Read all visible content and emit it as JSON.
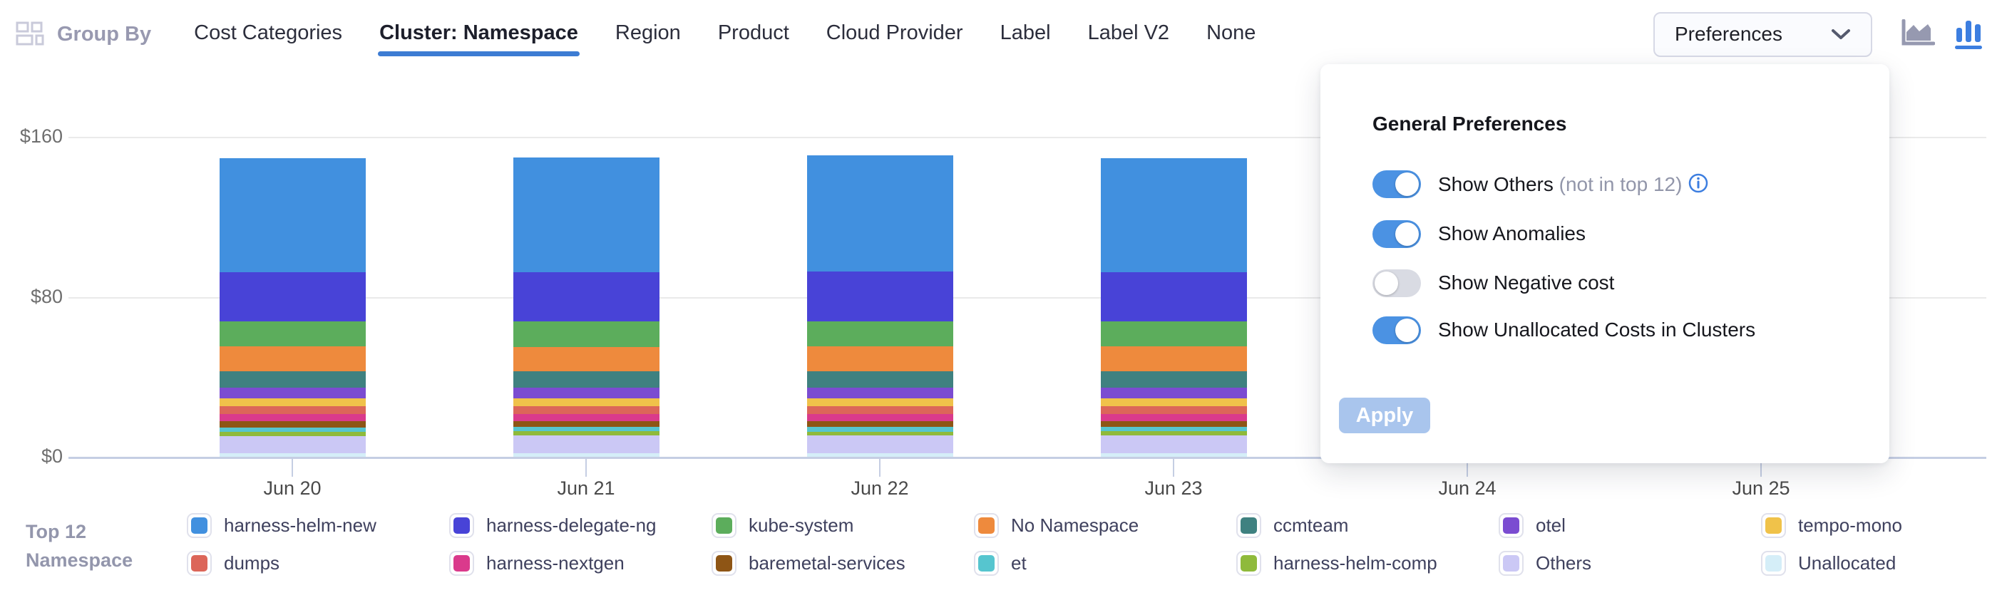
{
  "header": {
    "group_by_label": "Group By",
    "tabs": [
      {
        "label": "Cost Categories",
        "active": false
      },
      {
        "label": "Cluster: Namespace",
        "active": true
      },
      {
        "label": "Region",
        "active": false
      },
      {
        "label": "Product",
        "active": false
      },
      {
        "label": "Cloud Provider",
        "active": false
      },
      {
        "label": "Label",
        "active": false
      },
      {
        "label": "Label V2",
        "active": false
      },
      {
        "label": "None",
        "active": false
      }
    ],
    "preferences_button_label": "Preferences",
    "view_toggle": {
      "area_chart_active": false,
      "bar_chart_active": true
    }
  },
  "preferences_panel": {
    "title": "General Preferences",
    "toggles": [
      {
        "label": "Show Others",
        "suffix": "(not in top 12)",
        "has_info": true,
        "on": true
      },
      {
        "label": "Show Anomalies",
        "suffix": "",
        "has_info": false,
        "on": true
      },
      {
        "label": "Show Negative cost",
        "suffix": "",
        "has_info": false,
        "on": false
      },
      {
        "label": "Show Unallocated Costs in Clusters",
        "suffix": "",
        "has_info": false,
        "on": true
      }
    ],
    "apply_label": "Apply",
    "apply_disabled": true
  },
  "legend": {
    "title_lines": [
      "Top 12",
      "Namespace"
    ],
    "items_row_major": [
      "harness-helm-new",
      "harness-delegate-ng",
      "kube-system",
      "No Namespace",
      "ccmteam",
      "otel",
      "tempo-mono",
      "dumps",
      "harness-nextgen",
      "baremetal-services",
      "et",
      "harness-helm-comp",
      "Others",
      "Unallocated"
    ]
  },
  "chart_data": {
    "type": "bar",
    "stacked": true,
    "title": "",
    "xlabel": "",
    "ylabel": "",
    "ylim": [
      0,
      160
    ],
    "y_ticks": [
      {
        "label": "$0",
        "value": 0
      },
      {
        "label": "$80",
        "value": 80
      },
      {
        "label": "$160",
        "value": 160
      }
    ],
    "grid": "horizontal",
    "legend_position": "bottom",
    "categories": [
      "Jun 20",
      "Jun 21",
      "Jun 22",
      "Jun 23",
      "Jun 24",
      "Jun 25"
    ],
    "series": [
      {
        "name": "harness-helm-new",
        "color": "#4190DF",
        "values": [
          57.0,
          57.5,
          58.0,
          57.0,
          0,
          0
        ]
      },
      {
        "name": "harness-delegate-ng",
        "color": "#4843D7",
        "values": [
          24.5,
          24.5,
          25.0,
          24.5,
          0,
          0
        ]
      },
      {
        "name": "kube-system",
        "color": "#5CAD5C",
        "values": [
          12.5,
          12.8,
          12.5,
          12.6,
          0,
          0
        ]
      },
      {
        "name": "No Namespace",
        "color": "#EE8A3D",
        "values": [
          12.4,
          12.4,
          12.5,
          12.4,
          0,
          0
        ]
      },
      {
        "name": "ccmteam",
        "color": "#3F8180",
        "values": [
          8.4,
          8.2,
          8.3,
          8.3,
          0,
          0
        ]
      },
      {
        "name": "otel",
        "color": "#7B4CD1",
        "values": [
          5.2,
          5.3,
          5.2,
          5.2,
          0,
          0
        ]
      },
      {
        "name": "tempo-mono",
        "color": "#F0C24A",
        "values": [
          3.9,
          3.9,
          4.0,
          3.9,
          0,
          0
        ]
      },
      {
        "name": "dumps",
        "color": "#DC6659",
        "values": [
          4.0,
          3.9,
          4.0,
          4.0,
          0,
          0
        ]
      },
      {
        "name": "harness-nextgen",
        "color": "#DA3A8C",
        "values": [
          3.6,
          3.6,
          3.6,
          3.6,
          0,
          0
        ]
      },
      {
        "name": "baremetal-services",
        "color": "#8E5515",
        "values": [
          3.0,
          2.8,
          2.9,
          2.9,
          0,
          0
        ]
      },
      {
        "name": "et",
        "color": "#56C5CF",
        "values": [
          2.2,
          2.1,
          2.2,
          2.1,
          0,
          0
        ]
      },
      {
        "name": "harness-helm-comp",
        "color": "#8FBA3B",
        "values": [
          2.0,
          2.1,
          2.0,
          2.2,
          0,
          0
        ]
      },
      {
        "name": "Others",
        "color": "#CBC8F5",
        "values": [
          8.8,
          8.9,
          8.8,
          8.8,
          0,
          0
        ]
      },
      {
        "name": "Unallocated",
        "color": "#D5EEF8",
        "values": [
          1.7,
          1.8,
          1.8,
          1.8,
          0,
          0
        ]
      }
    ],
    "stack_order_bottom_to_top": [
      "Unallocated",
      "Others",
      "harness-helm-comp",
      "et",
      "baremetal-services",
      "harness-nextgen",
      "dumps",
      "tempo-mono",
      "otel",
      "ccmteam",
      "No Namespace",
      "kube-system",
      "harness-delegate-ng",
      "harness-helm-new"
    ]
  },
  "colors": {
    "accent_blue": "#3D7CD3",
    "toggle_on": "#4B92E3",
    "toggle_off": "#D9DBE3",
    "apply_disabled_bg": "#A9C5ED",
    "axis_line": "#C5CEE3",
    "gridline": "#EAEAEA"
  }
}
